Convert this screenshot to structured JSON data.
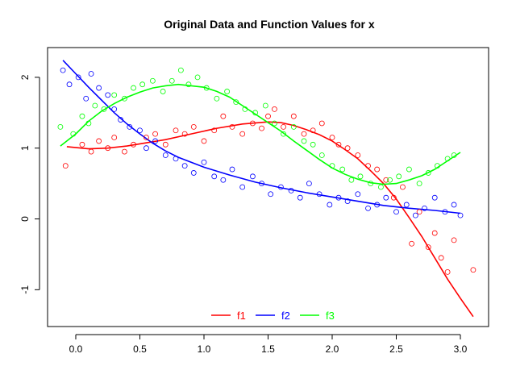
{
  "chart_data": {
    "type": "scatter",
    "title": "Original Data and Function Values for x",
    "xlabel": "",
    "ylabel": "",
    "xlim": [
      -0.22,
      3.22
    ],
    "ylim": [
      -1.52,
      2.42
    ],
    "x_ticks": [
      "0.0",
      "0.5",
      "1.0",
      "1.5",
      "2.0",
      "2.5",
      "3.0"
    ],
    "x_tick_values": [
      0,
      0.5,
      1,
      1.5,
      2,
      2.5,
      3
    ],
    "y_ticks": [
      "-1",
      "0",
      "1",
      "2"
    ],
    "y_tick_values": [
      -1,
      0,
      1,
      2
    ],
    "grid": false,
    "legend_position": "bottom-center",
    "series": [
      {
        "name": "f1",
        "color": "#ff0000",
        "line_x": [
          -0.07,
          0.1,
          0.25,
          0.4,
          0.5,
          0.7,
          0.9,
          1.1,
          1.3,
          1.5,
          1.6,
          1.7,
          1.8,
          1.9,
          2.0,
          2.1,
          2.2,
          2.3,
          2.4,
          2.5,
          2.6,
          2.7,
          2.8,
          2.9,
          3.0,
          3.1
        ],
        "line_y": [
          1.02,
          0.99,
          1.0,
          1.03,
          1.06,
          1.12,
          1.2,
          1.28,
          1.34,
          1.37,
          1.36,
          1.32,
          1.26,
          1.19,
          1.1,
          0.98,
          0.85,
          0.68,
          0.5,
          0.28,
          0.02,
          -0.25,
          -0.55,
          -0.85,
          -1.12,
          -1.38
        ],
        "points_x": [
          -0.08,
          0.05,
          0.12,
          0.18,
          0.25,
          0.3,
          0.38,
          0.45,
          0.55,
          0.62,
          0.7,
          0.78,
          0.85,
          0.92,
          1.0,
          1.08,
          1.15,
          1.22,
          1.3,
          1.38,
          1.45,
          1.5,
          1.55,
          1.62,
          1.7,
          1.78,
          1.85,
          1.92,
          2.0,
          2.05,
          2.12,
          2.2,
          2.28,
          2.35,
          2.42,
          2.48,
          2.55,
          2.62,
          2.68,
          2.75,
          2.8,
          2.85,
          2.9,
          2.95,
          3.1
        ],
        "points_y": [
          0.75,
          1.05,
          0.95,
          1.1,
          1.0,
          1.15,
          0.95,
          1.05,
          1.15,
          1.2,
          1.05,
          1.25,
          1.2,
          1.3,
          1.1,
          1.25,
          1.45,
          1.3,
          1.2,
          1.35,
          1.28,
          1.45,
          1.55,
          1.3,
          1.45,
          1.2,
          1.25,
          1.35,
          1.15,
          1.05,
          1.0,
          0.9,
          0.75,
          0.7,
          0.55,
          0.3,
          0.45,
          -0.35,
          0.1,
          -0.4,
          -0.2,
          -0.55,
          -0.75,
          -0.3,
          -0.72
        ]
      },
      {
        "name": "f2",
        "color": "#0000ff",
        "line_x": [
          -0.1,
          0.0,
          0.1,
          0.2,
          0.3,
          0.4,
          0.5,
          0.6,
          0.7,
          0.8,
          0.9,
          1.0,
          1.2,
          1.4,
          1.6,
          1.8,
          2.0,
          2.2,
          2.4,
          2.6,
          2.8,
          3.0
        ],
        "line_y": [
          2.24,
          2.05,
          1.86,
          1.68,
          1.5,
          1.34,
          1.2,
          1.07,
          0.96,
          0.87,
          0.8,
          0.73,
          0.62,
          0.52,
          0.44,
          0.37,
          0.31,
          0.25,
          0.19,
          0.15,
          0.12,
          0.08
        ],
        "points_x": [
          -0.1,
          -0.05,
          0.02,
          0.08,
          0.12,
          0.18,
          0.25,
          0.3,
          0.35,
          0.42,
          0.5,
          0.55,
          0.62,
          0.7,
          0.78,
          0.85,
          0.92,
          1.0,
          1.08,
          1.15,
          1.22,
          1.3,
          1.38,
          1.45,
          1.52,
          1.6,
          1.68,
          1.75,
          1.82,
          1.9,
          1.98,
          2.05,
          2.12,
          2.2,
          2.28,
          2.35,
          2.42,
          2.5,
          2.58,
          2.65,
          2.72,
          2.8,
          2.88,
          2.95,
          3.0
        ],
        "points_y": [
          2.1,
          1.9,
          2.0,
          1.7,
          2.05,
          1.85,
          1.75,
          1.55,
          1.4,
          1.3,
          1.25,
          1.0,
          1.1,
          0.9,
          0.85,
          0.75,
          0.65,
          0.8,
          0.6,
          0.55,
          0.7,
          0.45,
          0.6,
          0.5,
          0.35,
          0.45,
          0.4,
          0.3,
          0.5,
          0.35,
          0.2,
          0.3,
          0.25,
          0.35,
          0.15,
          0.2,
          0.3,
          0.1,
          0.2,
          0.05,
          0.15,
          0.3,
          0.1,
          0.2,
          0.05
        ]
      },
      {
        "name": "f3",
        "color": "#00ff00",
        "line_x": [
          -0.12,
          0.0,
          0.1,
          0.2,
          0.3,
          0.4,
          0.5,
          0.6,
          0.7,
          0.8,
          0.9,
          1.0,
          1.1,
          1.2,
          1.3,
          1.4,
          1.5,
          1.6,
          1.7,
          1.8,
          1.9,
          2.0,
          2.1,
          2.2,
          2.3,
          2.4,
          2.5,
          2.6,
          2.7,
          2.8,
          2.9,
          3.0
        ],
        "line_y": [
          1.03,
          1.2,
          1.38,
          1.52,
          1.63,
          1.72,
          1.79,
          1.85,
          1.88,
          1.9,
          1.88,
          1.86,
          1.8,
          1.72,
          1.6,
          1.48,
          1.36,
          1.24,
          1.1,
          0.97,
          0.84,
          0.72,
          0.63,
          0.56,
          0.51,
          0.49,
          0.5,
          0.55,
          0.61,
          0.7,
          0.82,
          0.94
        ],
        "points_x": [
          -0.12,
          -0.02,
          0.05,
          0.1,
          0.15,
          0.22,
          0.3,
          0.38,
          0.45,
          0.52,
          0.6,
          0.68,
          0.75,
          0.82,
          0.88,
          0.95,
          1.02,
          1.1,
          1.18,
          1.25,
          1.32,
          1.4,
          1.48,
          1.55,
          1.62,
          1.7,
          1.78,
          1.85,
          1.92,
          2.0,
          2.08,
          2.15,
          2.22,
          2.3,
          2.38,
          2.45,
          2.52,
          2.6,
          2.68,
          2.75,
          2.82,
          2.9,
          2.95
        ],
        "points_y": [
          1.3,
          1.2,
          1.45,
          1.35,
          1.6,
          1.55,
          1.75,
          1.7,
          1.85,
          1.9,
          1.95,
          1.8,
          1.95,
          2.1,
          1.9,
          2.0,
          1.85,
          1.7,
          1.8,
          1.65,
          1.55,
          1.5,
          1.6,
          1.35,
          1.2,
          1.3,
          1.1,
          1.05,
          0.9,
          0.75,
          0.7,
          0.55,
          0.6,
          0.5,
          0.45,
          0.55,
          0.6,
          0.7,
          0.5,
          0.65,
          0.75,
          0.85,
          0.9
        ]
      }
    ]
  }
}
